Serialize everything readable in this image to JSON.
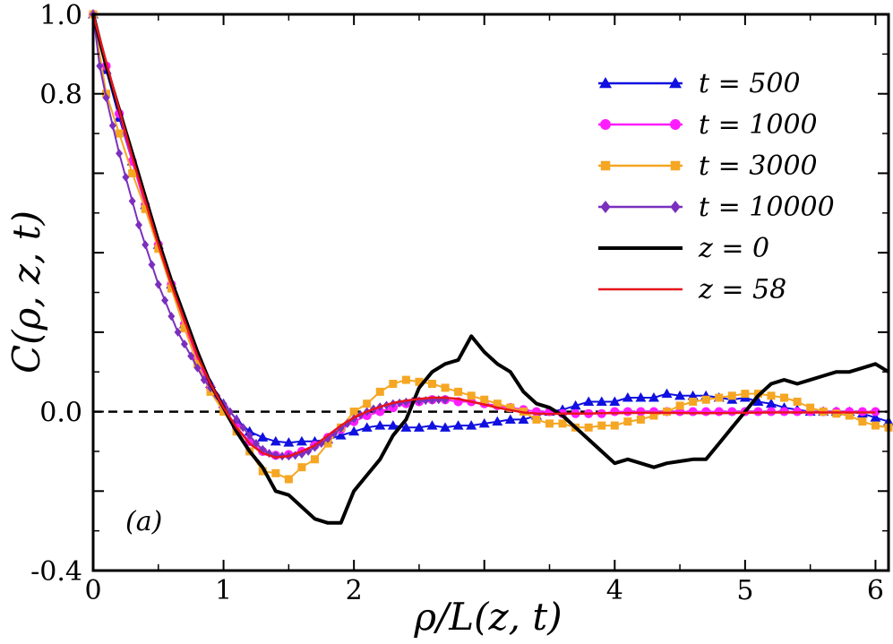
{
  "chart_data": {
    "type": "line",
    "title": "",
    "xlabel": "ρ/L(z, t)",
    "ylabel": "C(ρ, z, t)",
    "panel_label": "(a)",
    "xlim": [
      0,
      6.1
    ],
    "ylim": [
      -0.4,
      1.0
    ],
    "x_ticks": [
      0,
      1,
      2,
      3,
      4,
      5,
      6
    ],
    "x_tick_labels": [
      "0",
      "1",
      "2",
      "",
      "4",
      "5",
      "6"
    ],
    "y_ticks": [
      -0.4,
      0.0,
      0.8,
      1.0
    ],
    "y_tick_labels": [
      "-0.4",
      "0.0",
      "0.8",
      "1.0"
    ],
    "zero_line": true,
    "legend_position": "top-right",
    "series": [
      {
        "name": "t = 500",
        "label": "t = 500",
        "color": "#1010e0",
        "marker": "triangle",
        "x": [
          0,
          0.1,
          0.2,
          0.3,
          0.4,
          0.5,
          0.6,
          0.7,
          0.8,
          0.9,
          1.0,
          1.1,
          1.2,
          1.3,
          1.4,
          1.5,
          1.6,
          1.7,
          1.8,
          1.9,
          2.0,
          2.1,
          2.2,
          2.3,
          2.4,
          2.5,
          2.6,
          2.7,
          2.8,
          2.9,
          3.0,
          3.1,
          3.2,
          3.3,
          3.4,
          3.5,
          3.6,
          3.7,
          3.8,
          3.9,
          4.0,
          4.1,
          4.2,
          4.3,
          4.4,
          4.5,
          4.6,
          4.7,
          4.8,
          4.9,
          5.0,
          5.1,
          5.2,
          5.3,
          5.4,
          5.5,
          5.6,
          5.7,
          5.8,
          5.9,
          6.0,
          6.1
        ],
        "y": [
          1.0,
          0.86,
          0.74,
          0.63,
          0.52,
          0.42,
          0.32,
          0.22,
          0.14,
          0.07,
          0.02,
          -0.02,
          -0.05,
          -0.065,
          -0.075,
          -0.078,
          -0.075,
          -0.075,
          -0.07,
          -0.06,
          -0.05,
          -0.04,
          -0.035,
          -0.035,
          -0.04,
          -0.04,
          -0.035,
          -0.04,
          -0.035,
          -0.035,
          -0.03,
          -0.025,
          -0.02,
          -0.02,
          -0.01,
          0.0,
          0.005,
          0.015,
          0.025,
          0.025,
          0.025,
          0.035,
          0.035,
          0.035,
          0.045,
          0.04,
          0.04,
          0.04,
          0.035,
          0.03,
          0.035,
          0.025,
          0.02,
          0.01,
          0.005,
          0.0,
          0.0,
          0.0,
          0.0,
          -0.005,
          -0.015,
          -0.025
        ]
      },
      {
        "name": "t = 1000",
        "label": "t = 1000",
        "color": "#ff1cff",
        "marker": "circle",
        "x": [
          0,
          0.1,
          0.2,
          0.3,
          0.4,
          0.5,
          0.6,
          0.7,
          0.8,
          0.9,
          1.0,
          1.1,
          1.2,
          1.3,
          1.4,
          1.5,
          1.6,
          1.7,
          1.8,
          1.9,
          2.0,
          2.1,
          2.2,
          2.3,
          2.4,
          2.5,
          2.6,
          2.7,
          2.8,
          2.9,
          3.0,
          3.1,
          3.2,
          3.3,
          3.4,
          3.5,
          3.6,
          3.7,
          3.8,
          3.9,
          4.0,
          4.1,
          4.2,
          4.3,
          4.4,
          4.5,
          4.6,
          4.7,
          4.8,
          4.9,
          5.0,
          5.1,
          5.2,
          5.3,
          5.4,
          5.5,
          5.6,
          5.7,
          5.8,
          5.9,
          6.0
        ],
        "y": [
          1.0,
          0.87,
          0.75,
          0.63,
          0.52,
          0.42,
          0.32,
          0.22,
          0.13,
          0.06,
          0.01,
          -0.04,
          -0.075,
          -0.1,
          -0.11,
          -0.108,
          -0.1,
          -0.085,
          -0.065,
          -0.045,
          -0.025,
          -0.01,
          0.0,
          0.01,
          0.02,
          0.025,
          0.03,
          0.03,
          0.025,
          0.025,
          0.02,
          0.015,
          0.01,
          0.005,
          0.0,
          0.0,
          -0.005,
          -0.005,
          -0.005,
          -0.005,
          0.0,
          0.0,
          0.0,
          0.0,
          0.0,
          0.0,
          0.0,
          0.0,
          0.0,
          0.0,
          0.0,
          0.0,
          0.0,
          0.0,
          0.0,
          0.0,
          0.0,
          0.0,
          0.0,
          0.0,
          0.0
        ]
      },
      {
        "name": "t = 3000",
        "label": "t = 3000",
        "color": "#f5a623",
        "marker": "square",
        "x": [
          0,
          0.1,
          0.2,
          0.3,
          0.4,
          0.5,
          0.6,
          0.7,
          0.8,
          0.9,
          1.0,
          1.1,
          1.2,
          1.3,
          1.4,
          1.5,
          1.6,
          1.7,
          1.8,
          1.9,
          2.0,
          2.1,
          2.2,
          2.3,
          2.4,
          2.5,
          2.6,
          2.7,
          2.8,
          2.9,
          3.0,
          3.1,
          3.2,
          3.3,
          3.4,
          3.5,
          3.6,
          3.7,
          3.8,
          3.9,
          4.0,
          4.1,
          4.2,
          4.3,
          4.4,
          4.5,
          4.6,
          4.7,
          4.8,
          4.9,
          5.0,
          5.1,
          5.2,
          5.3,
          5.4,
          5.5,
          5.6,
          5.7,
          5.8,
          5.9,
          6.0,
          6.1
        ],
        "y": [
          1.0,
          0.8,
          0.7,
          0.6,
          0.51,
          0.41,
          0.31,
          0.21,
          0.12,
          0.05,
          0.0,
          -0.05,
          -0.1,
          -0.15,
          -0.155,
          -0.17,
          -0.14,
          -0.12,
          -0.08,
          -0.04,
          0.0,
          0.02,
          0.05,
          0.07,
          0.08,
          0.075,
          0.07,
          0.06,
          0.05,
          0.04,
          0.03,
          0.02,
          0.01,
          0.0,
          -0.02,
          -0.03,
          -0.03,
          -0.04,
          -0.04,
          -0.035,
          -0.035,
          -0.025,
          -0.02,
          -0.01,
          0.0,
          0.015,
          0.025,
          0.03,
          0.035,
          0.04,
          0.045,
          0.045,
          0.04,
          0.035,
          0.025,
          0.01,
          0.0,
          -0.005,
          -0.01,
          -0.025,
          -0.035,
          -0.04
        ]
      },
      {
        "name": "t = 10000",
        "label": "t = 10000",
        "color": "#7b2fbe",
        "marker": "diamond",
        "x": [
          0,
          0.05,
          0.1,
          0.15,
          0.2,
          0.25,
          0.3,
          0.35,
          0.4,
          0.45,
          0.5,
          0.55,
          0.6,
          0.65,
          0.7,
          0.75,
          0.8,
          0.85,
          0.9,
          0.95,
          1.0,
          1.05,
          1.1,
          1.15,
          1.2,
          1.25,
          1.3,
          1.35,
          1.4,
          1.45,
          1.5,
          1.55,
          1.6,
          1.65,
          1.7,
          1.75,
          1.8,
          1.85,
          1.9,
          1.95,
          2.0,
          2.05,
          2.1,
          2.15,
          2.2,
          2.25,
          2.3,
          2.35,
          2.4,
          2.45,
          2.5,
          2.55,
          2.6,
          2.65,
          2.7
        ],
        "y": [
          1.0,
          0.87,
          0.79,
          0.72,
          0.65,
          0.59,
          0.53,
          0.47,
          0.42,
          0.37,
          0.32,
          0.28,
          0.24,
          0.2,
          0.17,
          0.14,
          0.11,
          0.08,
          0.06,
          0.04,
          0.02,
          0.0,
          -0.02,
          -0.04,
          -0.06,
          -0.08,
          -0.095,
          -0.105,
          -0.11,
          -0.112,
          -0.112,
          -0.11,
          -0.107,
          -0.1,
          -0.09,
          -0.08,
          -0.068,
          -0.055,
          -0.042,
          -0.03,
          -0.018,
          -0.008,
          0.0,
          0.007,
          0.012,
          0.016,
          0.02,
          0.022,
          0.024,
          0.026,
          0.027,
          0.028,
          0.029,
          0.03,
          0.03
        ]
      },
      {
        "name": "z = 0",
        "label": "z = 0",
        "color": "#000000",
        "marker": "none",
        "x": [
          0,
          0.1,
          0.2,
          0.3,
          0.4,
          0.5,
          0.6,
          0.7,
          0.8,
          0.9,
          1.0,
          1.1,
          1.2,
          1.3,
          1.4,
          1.5,
          1.6,
          1.7,
          1.8,
          1.9,
          2.0,
          2.1,
          2.2,
          2.3,
          2.4,
          2.5,
          2.6,
          2.7,
          2.8,
          2.9,
          3.0,
          3.1,
          3.2,
          3.3,
          3.4,
          3.5,
          3.6,
          3.7,
          3.8,
          3.9,
          4.0,
          4.1,
          4.2,
          4.3,
          4.4,
          4.5,
          4.6,
          4.7,
          4.8,
          4.9,
          5.0,
          5.1,
          5.2,
          5.3,
          5.4,
          5.5,
          5.6,
          5.7,
          5.8,
          5.9,
          6.0,
          6.1
        ],
        "y": [
          1.0,
          0.87,
          0.76,
          0.65,
          0.54,
          0.43,
          0.33,
          0.24,
          0.15,
          0.07,
          0.01,
          -0.05,
          -0.1,
          -0.14,
          -0.2,
          -0.21,
          -0.24,
          -0.27,
          -0.28,
          -0.28,
          -0.2,
          -0.16,
          -0.12,
          -0.06,
          -0.02,
          0.06,
          0.1,
          0.12,
          0.13,
          0.19,
          0.15,
          0.12,
          0.1,
          0.05,
          0.02,
          0.01,
          -0.01,
          -0.04,
          -0.07,
          -0.1,
          -0.13,
          -0.12,
          -0.13,
          -0.14,
          -0.13,
          -0.125,
          -0.12,
          -0.12,
          -0.08,
          -0.04,
          0.0,
          0.04,
          0.07,
          0.08,
          0.07,
          0.08,
          0.09,
          0.1,
          0.1,
          0.11,
          0.12,
          0.1
        ]
      },
      {
        "name": "z = 58",
        "label": "z = 58",
        "color": "#e8141c",
        "marker": "none",
        "x": [
          0,
          0.1,
          0.2,
          0.3,
          0.4,
          0.5,
          0.6,
          0.7,
          0.8,
          0.9,
          1.0,
          1.1,
          1.2,
          1.3,
          1.4,
          1.5,
          1.6,
          1.7,
          1.8,
          1.9,
          2.0,
          2.1,
          2.2,
          2.3,
          2.4,
          2.5,
          2.6,
          2.7,
          2.8,
          2.9,
          3.0,
          3.1,
          3.2,
          3.3,
          3.4,
          3.5,
          3.6,
          3.7,
          3.8,
          3.9,
          4.0,
          4.2,
          4.4,
          4.6,
          4.8,
          5.0,
          5.2,
          5.4,
          5.6,
          5.8,
          6.0
        ],
        "y": [
          1.0,
          0.88,
          0.76,
          0.64,
          0.53,
          0.42,
          0.32,
          0.23,
          0.14,
          0.07,
          0.01,
          -0.04,
          -0.08,
          -0.105,
          -0.115,
          -0.112,
          -0.1,
          -0.085,
          -0.06,
          -0.035,
          -0.015,
          0.0,
          0.012,
          0.022,
          0.028,
          0.032,
          0.035,
          0.035,
          0.032,
          0.025,
          0.018,
          0.01,
          0.004,
          -0.002,
          -0.005,
          -0.006,
          -0.005,
          -0.005,
          -0.005,
          -0.004,
          -0.004,
          -0.003,
          -0.003,
          -0.004,
          -0.004,
          -0.003,
          -0.002,
          -0.002,
          -0.002,
          -0.002,
          -0.002
        ]
      }
    ]
  }
}
